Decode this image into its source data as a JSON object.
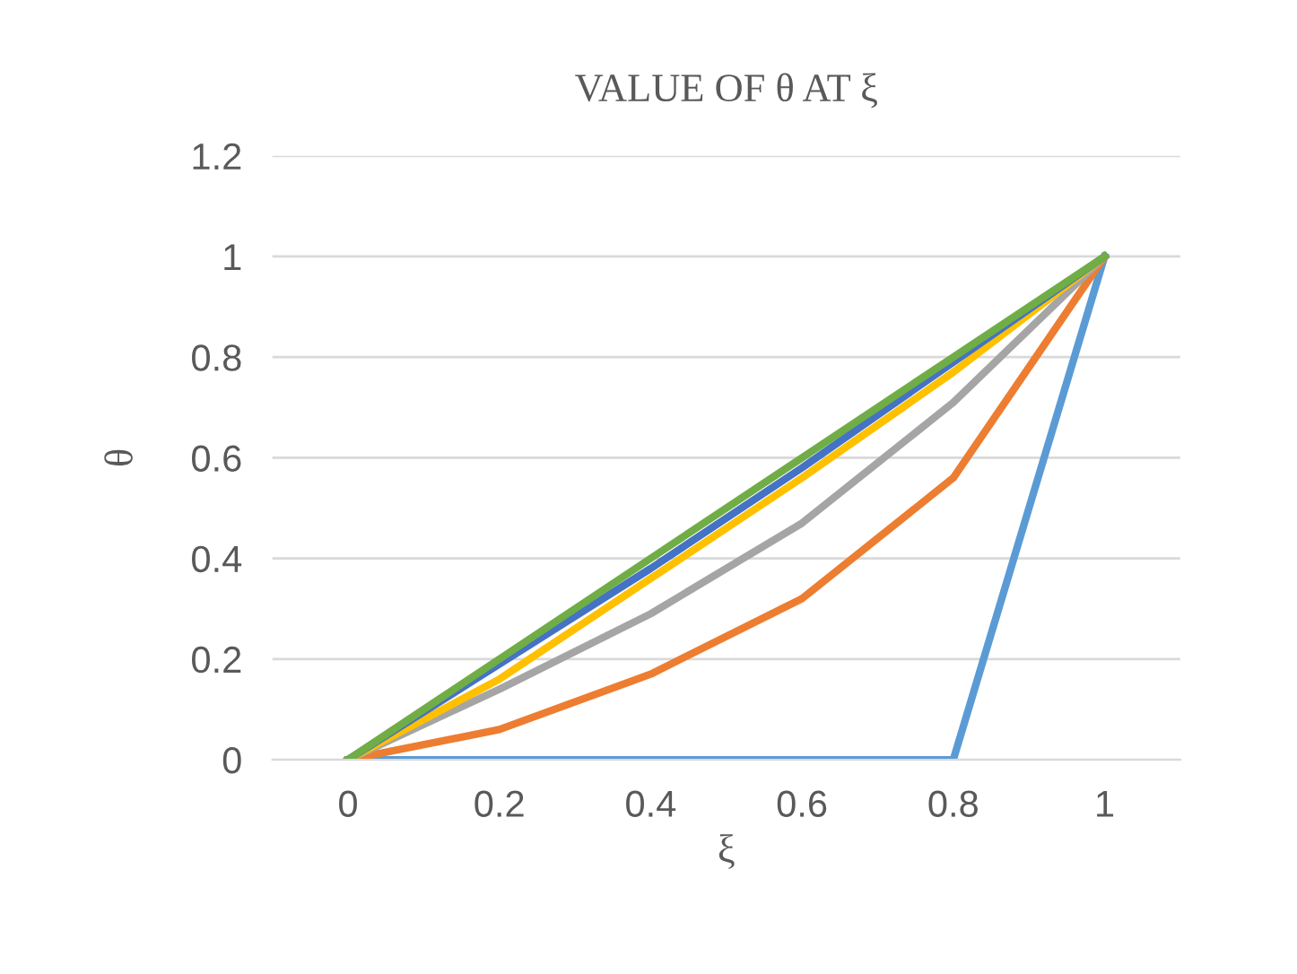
{
  "chart_data": {
    "type": "line",
    "title": "VALUE OF θ AT ξ",
    "xlabel": "ξ",
    "ylabel": "θ",
    "x": [
      0,
      0.2,
      0.4,
      0.6,
      0.8,
      1
    ],
    "series": [
      {
        "color": "#5b9bd5",
        "values": [
          0,
          0,
          0,
          0,
          0,
          1
        ]
      },
      {
        "color": "#ed7d31",
        "values": [
          0,
          0.06,
          0.17,
          0.32,
          0.56,
          1
        ]
      },
      {
        "color": "#a5a5a5",
        "values": [
          0,
          0.14,
          0.29,
          0.47,
          0.71,
          1
        ]
      },
      {
        "color": "#ffc000",
        "values": [
          0,
          0.16,
          0.36,
          0.56,
          0.77,
          1
        ]
      },
      {
        "color": "#4472c4",
        "values": [
          0,
          0.19,
          0.38,
          0.58,
          0.79,
          1
        ]
      },
      {
        "color": "#70ad47",
        "values": [
          0,
          0.2,
          0.4,
          0.6,
          0.8,
          1
        ]
      }
    ],
    "xlim": [
      -0.1,
      1.1
    ],
    "xticks": [
      0,
      0.2,
      0.4,
      0.6,
      0.8,
      1
    ],
    "ylim": [
      0,
      1.2
    ],
    "yticks": [
      0,
      0.2,
      0.4,
      0.6,
      0.8,
      1,
      1.2
    ],
    "grid": "y",
    "line_style": "solid",
    "marker": "none"
  }
}
